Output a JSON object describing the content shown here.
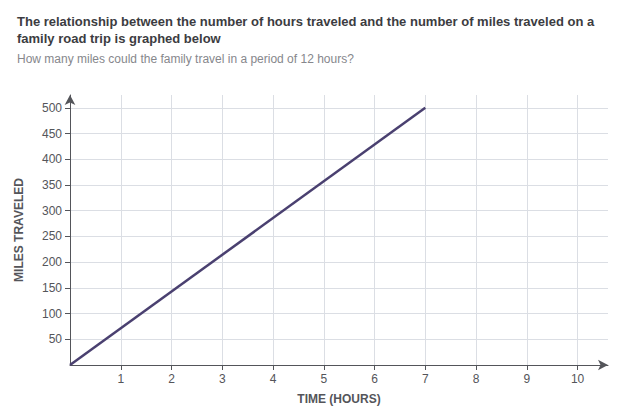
{
  "chart_data": {
    "type": "line",
    "title": "The relationship between the number of hours traveled and the number of miles traveled on a family road trip is graphed below",
    "subtitle": "How many miles could the family travel in a period of 12 hours?",
    "xlabel": "TIME (HOURS)",
    "ylabel": "MILES TRAVELED",
    "x": [
      0,
      7
    ],
    "values": [
      0,
      500
    ],
    "color": "#4a4070",
    "xlim": [
      0,
      10.6
    ],
    "ylim": [
      0,
      525
    ],
    "xticks": [
      1,
      2,
      3,
      4,
      5,
      6,
      7,
      8,
      9,
      10
    ],
    "yticks": [
      50,
      100,
      150,
      200,
      250,
      300,
      350,
      400,
      450,
      500
    ],
    "grid": true
  }
}
